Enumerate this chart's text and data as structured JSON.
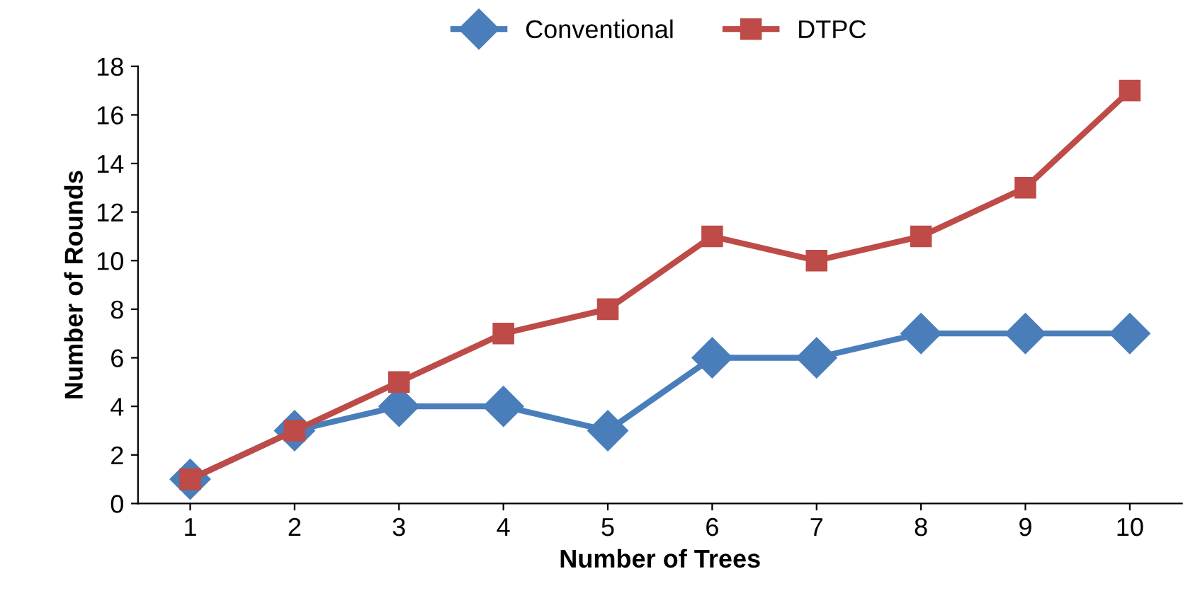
{
  "chart_data": {
    "type": "line",
    "xlabel": "Number of Trees",
    "ylabel": "Number of Rounds",
    "categories": [
      "1",
      "2",
      "3",
      "4",
      "5",
      "6",
      "7",
      "8",
      "9",
      "10"
    ],
    "series": [
      {
        "name": "Conventional",
        "color": "#4a7ebb",
        "marker": "diamond",
        "values": [
          1,
          3,
          4,
          4,
          3,
          6,
          6,
          7,
          7,
          7
        ]
      },
      {
        "name": "DTPC",
        "color": "#be4b48",
        "marker": "square",
        "values": [
          1,
          3,
          5,
          7,
          8,
          11,
          10,
          11,
          13,
          17
        ]
      }
    ],
    "ylim": [
      0,
      18
    ],
    "yticks": [
      0,
      2,
      4,
      6,
      8,
      10,
      12,
      14,
      16,
      18
    ],
    "grid": false,
    "legend": "top",
    "line_style": "solid"
  }
}
